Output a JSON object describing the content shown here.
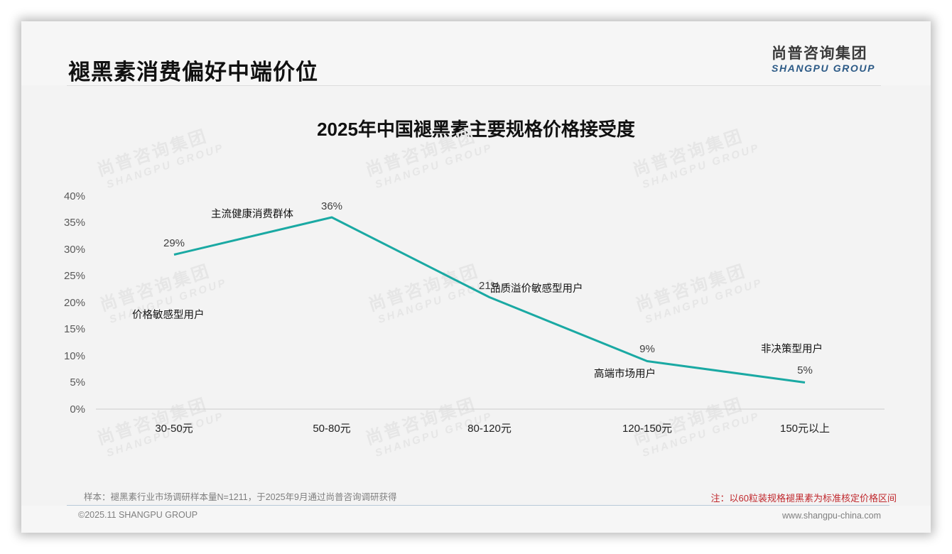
{
  "header": {
    "title": "褪黑素消费偏好中端价位",
    "logo_cn": "尚普咨询集团",
    "logo_en": "SHANGPU GROUP"
  },
  "watermark": {
    "cn": "尚普咨询集团",
    "en": "SHANGPU GROUP"
  },
  "chart_data": {
    "type": "line",
    "title": "2025年中国褪黑素主要规格价格接受度",
    "xlabel": "",
    "ylabel": "",
    "categories": [
      "30-50元",
      "50-80元",
      "80-120元",
      "120-150元",
      "150元以上"
    ],
    "values": [
      29,
      36,
      21,
      9,
      5
    ],
    "value_labels": [
      "29%",
      "36%",
      "21%",
      "9%",
      "5%"
    ],
    "annotations": [
      "价格敏感型用户",
      "主流健康消费群体",
      "品质溢价敏感型用户",
      "高端市场用户",
      "非决策型用户"
    ],
    "y_ticks": [
      "0%",
      "5%",
      "10%",
      "15%",
      "20%",
      "25%",
      "30%",
      "35%",
      "40%"
    ],
    "ylim": [
      0,
      40
    ],
    "grid": false,
    "legend": "none",
    "line_color": "#1aa9a3"
  },
  "footer": {
    "sample_note": "样本：褪黑素行业市场调研样本量N=1211，于2025年9月通过尚普咨询调研获得",
    "price_note": "注：以60粒装规格褪黑素为标准核定价格区间",
    "copyright": "©2025.11 SHANGPU GROUP",
    "website": "www.shangpu-china.com"
  }
}
